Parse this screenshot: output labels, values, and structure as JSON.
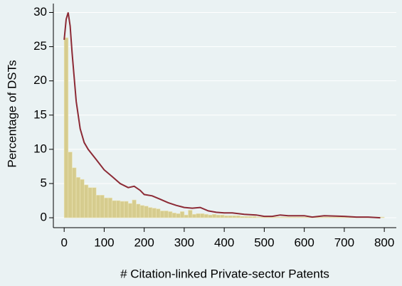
{
  "chart_data": {
    "type": "histogram",
    "ylabel": "Percentage of DSTs",
    "xlabel": "# Citation-linked Private-sector Patents",
    "bins": [
      0,
      10,
      20,
      30,
      40,
      50,
      60,
      70,
      80,
      90,
      100,
      110,
      120,
      130,
      140,
      150,
      160,
      170,
      180,
      190,
      200,
      210,
      220,
      230,
      240,
      250,
      260,
      270,
      280,
      290,
      300,
      310,
      320,
      330,
      340,
      350,
      360,
      370,
      380,
      390,
      400,
      410,
      420,
      430,
      440,
      450,
      460,
      470,
      480,
      490,
      500,
      510,
      520,
      530,
      540,
      550,
      560,
      570,
      580,
      590,
      600,
      610,
      620,
      630,
      640,
      650,
      660,
      670,
      680,
      690,
      700,
      710,
      720,
      730,
      740,
      750,
      760,
      770,
      780,
      790,
      800
    ],
    "counts": [
      26.3,
      9.6,
      7.3,
      5.9,
      5.6,
      4.8,
      4.4,
      4.4,
      3.3,
      3.3,
      2.9,
      2.9,
      2.5,
      2.5,
      2.4,
      2.4,
      2.1,
      2.6,
      2.0,
      1.8,
      1.7,
      1.5,
      1.4,
      1.3,
      1.0,
      1.0,
      0.9,
      0.7,
      0.6,
      0.9,
      0.4,
      1.1,
      0.5,
      0.6,
      0.6,
      0.5,
      0.4,
      0.5,
      0.4,
      0.4,
      0.3,
      0.3,
      0.3,
      0.3,
      0.2,
      0.2,
      0.2,
      0.2,
      0.1,
      0.1,
      0.1,
      0.1,
      0.1,
      0.1,
      0.1,
      0.1,
      0.1,
      0.1,
      0.1,
      0.1,
      0.1,
      0.1,
      0.1,
      0.1,
      0.1,
      0.1,
      0.1,
      0.1,
      0.1,
      0.1,
      0.1,
      0.1,
      0.1,
      0.1,
      0.1,
      0.1,
      0.1,
      0.1,
      0.1,
      0.1
    ],
    "color": "#d6cc8e",
    "density": {
      "color": "#8c2a35",
      "x": [
        0,
        5,
        10,
        15,
        20,
        30,
        40,
        50,
        60,
        80,
        100,
        120,
        140,
        160,
        175,
        190,
        200,
        220,
        240,
        260,
        280,
        300,
        320,
        340,
        360,
        380,
        400,
        420,
        450,
        480,
        500,
        520,
        540,
        560,
        600,
        620,
        650,
        700,
        730,
        760,
        790
      ],
      "y": [
        26,
        29,
        30,
        28,
        24,
        17,
        13,
        11,
        10,
        8.5,
        7,
        6,
        5,
        4.4,
        4.6,
        4,
        3.4,
        3.2,
        2.7,
        2.2,
        1.8,
        1.5,
        1.4,
        1.5,
        1,
        0.8,
        0.7,
        0.7,
        0.5,
        0.4,
        0.2,
        0.2,
        0.4,
        0.3,
        0.3,
        0.1,
        0.3,
        0.2,
        0.1,
        0.1,
        0
      ]
    },
    "xlim": [
      -27,
      830
    ],
    "ylim": [
      -1.45,
      31.3
    ],
    "xticks": [
      0,
      100,
      200,
      300,
      400,
      500,
      600,
      700,
      800
    ],
    "yticks": [
      0,
      5,
      10,
      15,
      20,
      25,
      30
    ],
    "grid": true
  }
}
